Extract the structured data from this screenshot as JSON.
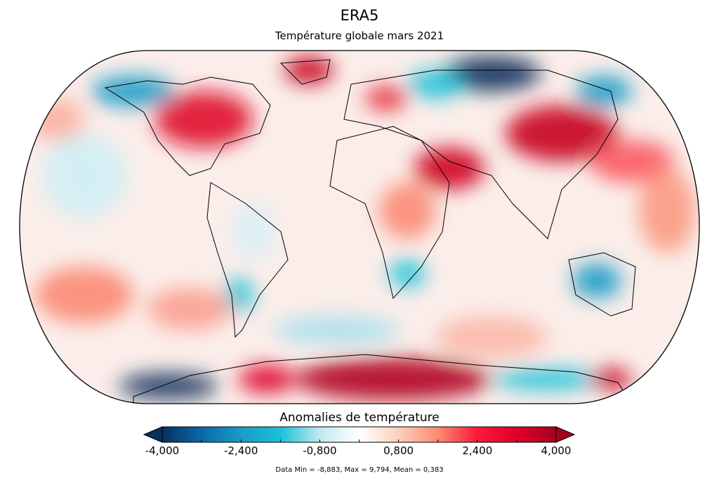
{
  "title": "ERA5",
  "subtitle": "Température globale mars 2021",
  "map": {
    "projection": "robinson",
    "variable": "temperature anomaly",
    "colormap": [
      "#08305c",
      "#0a6aa8",
      "#1a9bc6",
      "#1bc1d8",
      "#bfe9ef",
      "#ffffff",
      "#fcd0bc",
      "#fb8a72",
      "#fb1a3a",
      "#e00028",
      "#a5001e"
    ]
  },
  "colorbar": {
    "label": "Anomalies de température",
    "min": -4.0,
    "max": 4.0,
    "extend": "both",
    "tick_labels": [
      "-4,000",
      "-2,400",
      "-0,800",
      "0,800",
      "2,400",
      "4,000"
    ],
    "tick_values": [
      -4.0,
      -2.4,
      -0.8,
      0.8,
      2.4,
      4.0
    ]
  },
  "stats": "Data Min = -8,883, Max = 9,794, Mean = 0,383"
}
